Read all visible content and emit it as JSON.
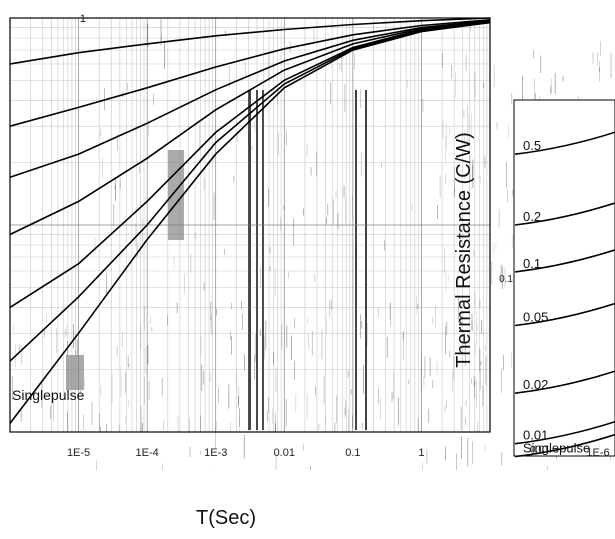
{
  "chart_data": [
    {
      "type": "line",
      "title": "",
      "xlabel": "T(Sec)",
      "ylabel": "",
      "x_scale": "log",
      "y_scale": "log",
      "xlim": [
        1e-06,
        10
      ],
      "ylim": [
        0.01,
        1
      ],
      "x_tick_labels": [
        "1E-5",
        "1E-4",
        "1E-3",
        "0.01",
        "0.1",
        "1"
      ],
      "y_tick_labels": [
        "1"
      ],
      "grid": true,
      "annotations": [
        "Singlepulse"
      ],
      "series": [
        {
          "name": "0.5",
          "x": [
            1e-06,
            1e-05,
            0.0001,
            0.001,
            0.01,
            0.1,
            1,
            10
          ],
          "y": [
            0.6,
            0.68,
            0.75,
            0.82,
            0.88,
            0.93,
            0.97,
            1.0
          ]
        },
        {
          "name": "0.2",
          "x": [
            1e-06,
            1e-05,
            0.0001,
            0.001,
            0.01,
            0.1,
            1,
            10
          ],
          "y": [
            0.3,
            0.37,
            0.46,
            0.58,
            0.71,
            0.83,
            0.92,
            0.98
          ]
        },
        {
          "name": "0.1",
          "x": [
            1e-06,
            1e-05,
            0.0001,
            0.001,
            0.01,
            0.1,
            1,
            10
          ],
          "y": [
            0.17,
            0.22,
            0.31,
            0.45,
            0.62,
            0.78,
            0.9,
            0.97
          ]
        },
        {
          "name": "0.05",
          "x": [
            1e-06,
            1e-05,
            0.0001,
            0.001,
            0.01,
            0.1,
            1,
            10
          ],
          "y": [
            0.09,
            0.13,
            0.21,
            0.36,
            0.56,
            0.75,
            0.89,
            0.96
          ]
        },
        {
          "name": "0.02",
          "x": [
            1e-06,
            1e-05,
            0.0001,
            0.001,
            0.01,
            0.1,
            1,
            10
          ],
          "y": [
            0.04,
            0.065,
            0.13,
            0.28,
            0.5,
            0.72,
            0.88,
            0.96
          ]
        },
        {
          "name": "0.01",
          "x": [
            1e-06,
            1e-05,
            0.0001,
            0.001,
            0.01,
            0.1,
            1,
            10
          ],
          "y": [
            0.022,
            0.045,
            0.1,
            0.25,
            0.48,
            0.71,
            0.87,
            0.95
          ]
        },
        {
          "name": "Singlepulse",
          "x": [
            1e-06,
            1e-05,
            0.0001,
            0.001,
            0.01,
            0.1,
            1,
            10
          ],
          "y": [
            0.011,
            0.03,
            0.085,
            0.22,
            0.46,
            0.7,
            0.86,
            0.95
          ]
        }
      ]
    },
    {
      "type": "line",
      "title": "",
      "xlabel": "",
      "ylabel": "Thermal Resistance (C/W)",
      "x_scale": "log",
      "y_scale": "log",
      "ylim": [
        0.01,
        1
      ],
      "x_tick_labels": [
        "1E-6"
      ],
      "y_tick_labels": [
        "0.1",
        "0.01"
      ],
      "series_labels": [
        "0.5",
        "0.2",
        "0.1",
        "0.05",
        "0.02",
        "0.01",
        "Singlepulse"
      ]
    }
  ]
}
